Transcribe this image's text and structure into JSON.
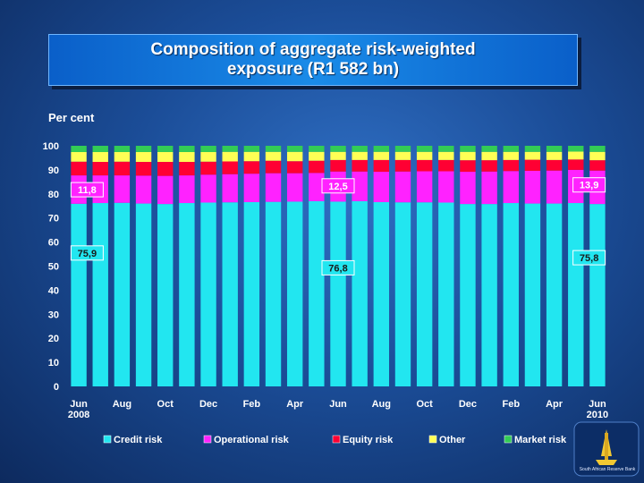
{
  "title": "Composition of aggregate risk-weighted\nexposure (R1 582 bn)",
  "chart_data": {
    "type": "bar",
    "stacked": true,
    "title": "Composition of aggregate risk-weighted exposure (R1 582 bn)",
    "ylabel": "Per cent",
    "xlabel": "",
    "ylim": [
      0,
      100
    ],
    "yticks": [
      0,
      10,
      20,
      30,
      40,
      50,
      60,
      70,
      80,
      90,
      100
    ],
    "grid": false,
    "legend": "bottom",
    "x_tick_labels": [
      "Jun\n2008",
      "Aug",
      "Oct",
      "Dec",
      "Feb",
      "Apr",
      "Jun",
      "Aug",
      "Oct",
      "Dec",
      "Feb",
      "Apr",
      "Jun\n2010"
    ],
    "categories": [
      "Jun 2008",
      "Jul 2008",
      "Aug 2008",
      "Sep 2008",
      "Oct 2008",
      "Nov 2008",
      "Dec 2008",
      "Jan 2009",
      "Feb 2009",
      "Mar 2009",
      "Apr 2009",
      "May 2009",
      "Jun 2009",
      "Jul 2009",
      "Aug 2009",
      "Sep 2009",
      "Oct 2009",
      "Nov 2009",
      "Dec 2009",
      "Jan 2010",
      "Feb 2010",
      "Mar 2010",
      "Apr 2010",
      "May 2010",
      "Jun 2010"
    ],
    "series": [
      {
        "name": "Credit risk",
        "color": "#22e6f0",
        "values": [
          75.9,
          76.2,
          76.3,
          76.0,
          75.8,
          76.2,
          76.4,
          76.5,
          76.6,
          76.7,
          76.8,
          77.0,
          76.8,
          77.0,
          76.6,
          76.5,
          76.5,
          76.4,
          75.8,
          75.8,
          76.2,
          76.0,
          76.0,
          76.2,
          75.8
        ]
      },
      {
        "name": "Operational risk",
        "color": "#ff22ff",
        "values": [
          11.8,
          11.5,
          11.4,
          11.6,
          11.7,
          11.5,
          11.6,
          11.7,
          11.8,
          11.9,
          11.8,
          11.7,
          12.5,
          12.3,
          12.6,
          12.8,
          12.9,
          13.0,
          13.4,
          13.5,
          13.3,
          13.6,
          13.7,
          13.8,
          13.9
        ]
      },
      {
        "name": "Equity risk",
        "color": "#ff0033",
        "values": [
          5.7,
          5.6,
          5.7,
          5.7,
          5.8,
          5.6,
          5.4,
          5.3,
          5.2,
          5.2,
          5.0,
          5.1,
          4.8,
          4.8,
          4.9,
          4.8,
          4.7,
          4.7,
          4.8,
          4.7,
          4.6,
          4.6,
          4.4,
          4.3,
          4.3
        ]
      },
      {
        "name": "Other",
        "color": "#ffff55",
        "values": [
          4.0,
          4.1,
          4.0,
          4.1,
          4.1,
          4.1,
          4.0,
          4.0,
          3.9,
          3.7,
          3.9,
          3.7,
          3.4,
          3.4,
          3.4,
          3.4,
          3.4,
          3.4,
          3.5,
          3.5,
          3.4,
          3.3,
          3.4,
          3.3,
          3.5
        ]
      },
      {
        "name": "Market risk",
        "color": "#33cc55",
        "values": [
          2.6,
          2.6,
          2.6,
          2.6,
          2.6,
          2.6,
          2.6,
          2.5,
          2.5,
          2.5,
          2.5,
          2.5,
          2.5,
          2.5,
          2.5,
          2.5,
          2.5,
          2.5,
          2.5,
          2.5,
          2.5,
          2.5,
          2.5,
          2.4,
          2.5
        ]
      }
    ],
    "annotations": [
      {
        "text": "75,9",
        "category": "Jun 2008",
        "series": "Credit risk"
      },
      {
        "text": "11,8",
        "category": "Jun 2008",
        "series": "Operational risk"
      },
      {
        "text": "76,8",
        "category": "Jun 2009",
        "series": "Credit risk"
      },
      {
        "text": "12,5",
        "category": "Jun 2009",
        "series": "Operational risk"
      },
      {
        "text": "75,8",
        "category": "Jun 2010",
        "series": "Credit risk"
      },
      {
        "text": "13,9",
        "category": "Jun 2010",
        "series": "Operational risk"
      }
    ]
  },
  "logo": {
    "text": "South African Reserve Bank",
    "icon": "sarb-logo-icon"
  }
}
